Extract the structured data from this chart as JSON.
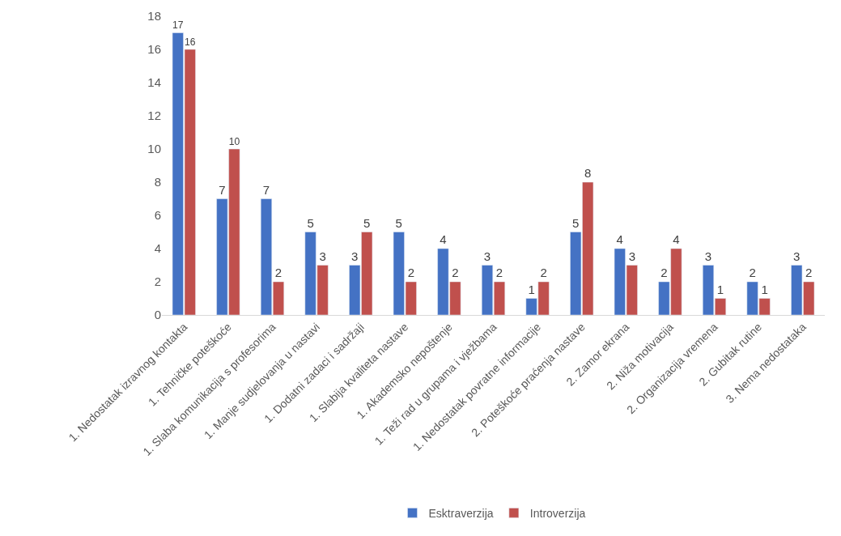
{
  "chart_data": {
    "type": "bar",
    "categories": [
      "1. Nedostatak izravnog kontakta",
      "1. Tehničke poteškoće",
      "1. Slaba komunikacija s profesorima",
      "1. Manje sudjelovanja u nastavi",
      "1. Dodatni zadaci i sadržaji",
      "1. Slabija kvaliteta nastave",
      "1. Akademsko nepoštenje",
      "1. Teži rad u grupama i vježbama",
      "1. Nedostatak povratne informacije",
      "2. Poteškoće praćenja nastave",
      "2. Zamor ekrana",
      "2. Niža motivacija",
      "2. Organizacija vremena",
      "2. Gubitak rutine",
      "3. Nema nedostataka"
    ],
    "series": [
      {
        "name": "Esktraverzija",
        "color": "#4472c4",
        "values": [
          17,
          7,
          7,
          5,
          3,
          5,
          4,
          3,
          1,
          5,
          4,
          2,
          3,
          2,
          3
        ]
      },
      {
        "name": "Introverzija",
        "color": "#c0504d",
        "values": [
          16,
          10,
          2,
          3,
          5,
          2,
          2,
          2,
          2,
          8,
          3,
          4,
          1,
          1,
          2
        ]
      }
    ],
    "ylim": [
      0,
      18
    ],
    "yticks": [
      0,
      2,
      4,
      6,
      8,
      10,
      12,
      14,
      16,
      18
    ],
    "grid": false,
    "legend": "bottom",
    "data_labels": true
  }
}
